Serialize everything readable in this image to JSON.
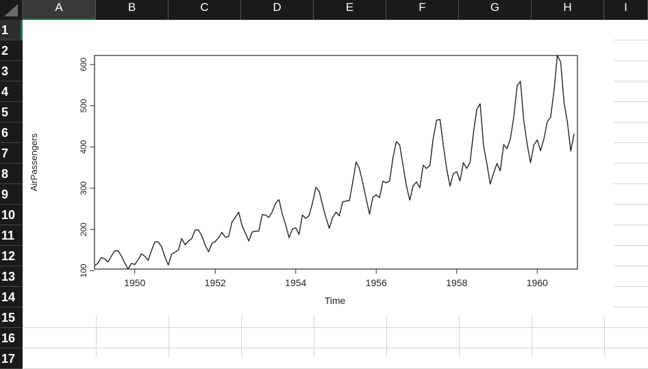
{
  "columns": [
    "A",
    "B",
    "C",
    "D",
    "E",
    "F",
    "G",
    "H",
    "I"
  ],
  "rows": [
    "1",
    "2",
    "3",
    "4",
    "5",
    "6",
    "7",
    "8",
    "9",
    "10",
    "11",
    "12",
    "13",
    "14",
    "15",
    "16",
    "17"
  ],
  "selected_cell": "A1",
  "chart_data": {
    "type": "line",
    "title": "",
    "xlabel": "Time",
    "ylabel": "AirPassengers",
    "xlim": [
      1949,
      1961
    ],
    "ylim": [
      104,
      622
    ],
    "x_ticks": [
      "1950",
      "1952",
      "1954",
      "1956",
      "1958",
      "1960"
    ],
    "y_ticks": [
      "100",
      "200",
      "300",
      "400",
      "500",
      "600"
    ],
    "grid": false,
    "series": [
      {
        "x_start": "1949-01",
        "frequency": "monthly",
        "values": [
          112,
          118,
          132,
          129,
          121,
          135,
          148,
          148,
          136,
          119,
          104,
          118,
          115,
          126,
          141,
          135,
          125,
          149,
          170,
          170,
          158,
          133,
          114,
          140,
          145,
          150,
          178,
          163,
          172,
          178,
          199,
          199,
          184,
          162,
          146,
          166,
          171,
          180,
          193,
          181,
          183,
          218,
          230,
          242,
          209,
          191,
          172,
          194,
          196,
          196,
          236,
          235,
          229,
          243,
          264,
          272,
          237,
          211,
          180,
          201,
          204,
          188,
          235,
          227,
          234,
          264,
          302,
          293,
          259,
          229,
          203,
          229,
          242,
          233,
          267,
          269,
          270,
          315,
          364,
          347,
          312,
          274,
          237,
          278,
          284,
          277,
          317,
          313,
          318,
          374,
          413,
          405,
          355,
          306,
          271,
          306,
          315,
          301,
          356,
          348,
          355,
          422,
          465,
          467,
          404,
          347,
          305,
          336,
          340,
          318,
          362,
          348,
          363,
          435,
          491,
          505,
          404,
          359,
          310,
          337,
          360,
          342,
          406,
          396,
          420,
          472,
          548,
          559,
          463,
          407,
          362,
          405,
          417,
          391,
          419,
          461,
          472,
          535,
          622,
          606,
          508,
          461,
          390,
          432
        ]
      }
    ]
  }
}
